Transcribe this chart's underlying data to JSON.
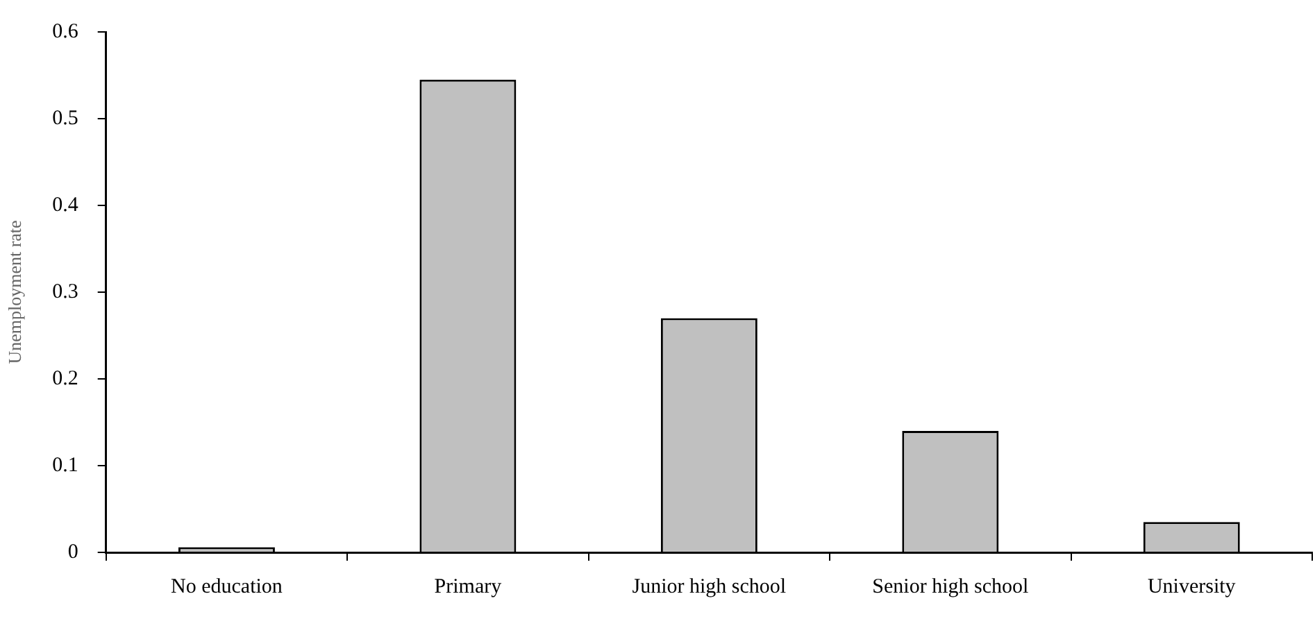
{
  "chart_data": {
    "type": "bar",
    "ylabel": "Unemployment rate",
    "categories": [
      "No education",
      "Primary",
      "Junior high school",
      "Senior high school",
      "University"
    ],
    "values": [
      0.006,
      0.545,
      0.27,
      0.14,
      0.035
    ],
    "color": "#c0c0c0",
    "ylim": [
      0,
      0.6
    ],
    "yticks": [
      0,
      0.1,
      0.2,
      0.3,
      0.4,
      0.5,
      0.6
    ],
    "grid": false,
    "legend": false
  }
}
